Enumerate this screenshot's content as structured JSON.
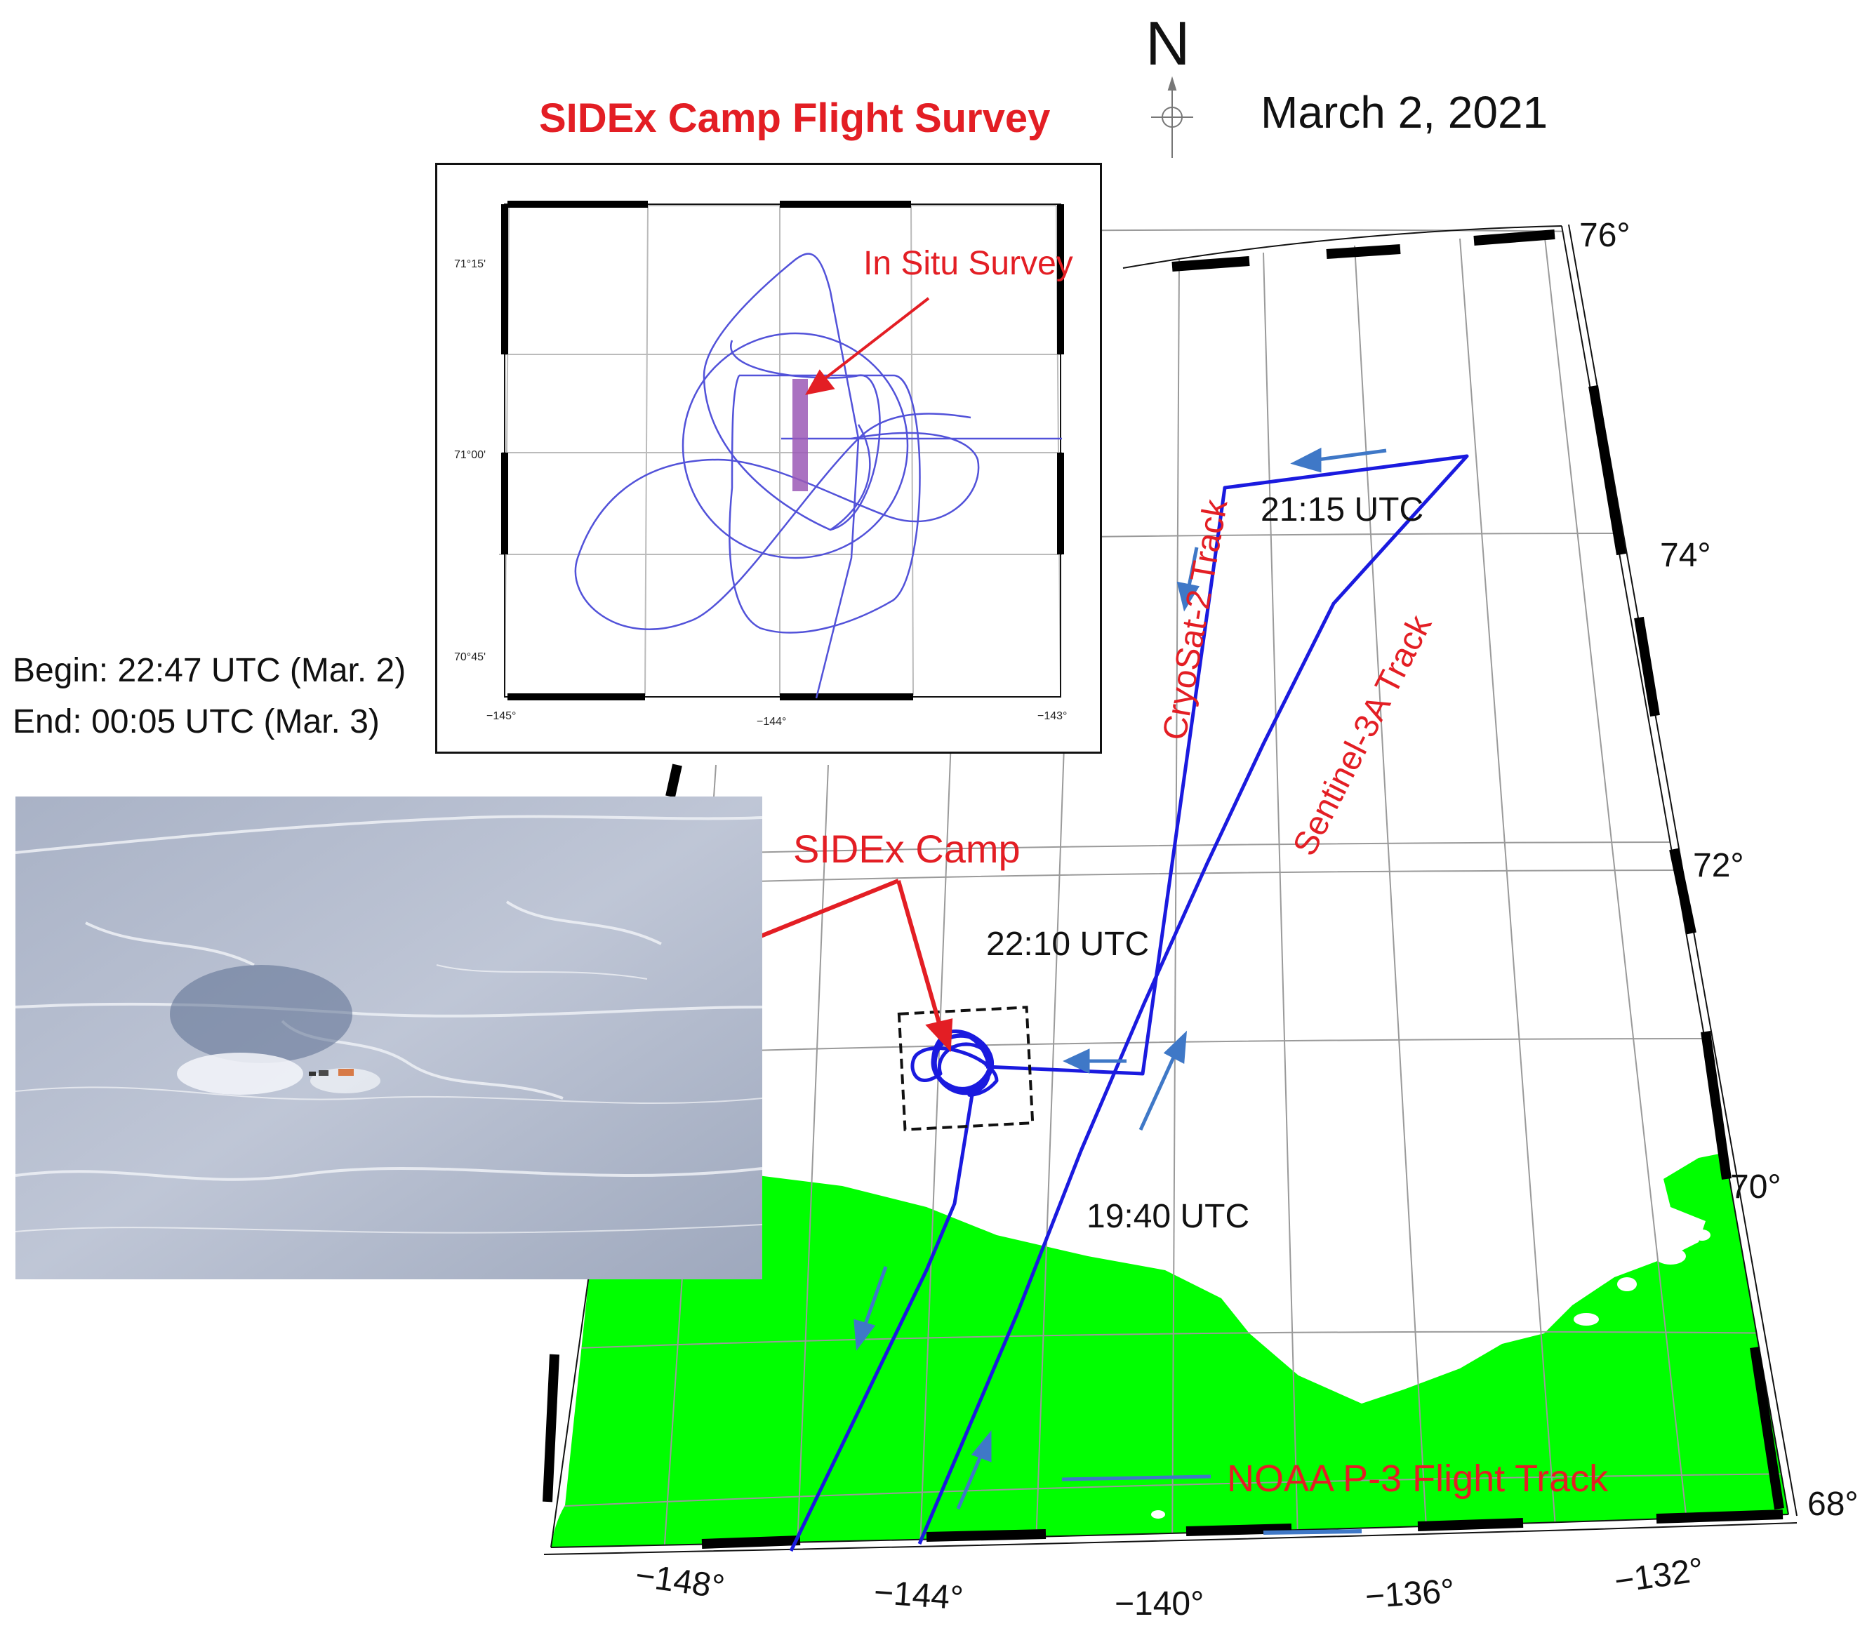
{
  "header": {
    "north_label": "N",
    "date": "March 2, 2021",
    "inset_title": "SIDEx Camp Flight Survey"
  },
  "times": {
    "begin": "Begin: 22:47 UTC (Mar. 2)",
    "end": "End: 00:05 UTC (Mar. 3)",
    "t_2115": "21:15 UTC",
    "t_2210": "22:10 UTC",
    "t_1940": "19:40 UTC"
  },
  "labels": {
    "sidex_camp": "SIDEx Camp",
    "in_situ": "In Situ Survey",
    "cryosat": "CryoSat-2 Track",
    "sentinel": "Sentinel-3A Track",
    "noaa": "NOAA P-3 Flight Track"
  },
  "main_map": {
    "lat_labels": [
      "76°",
      "74°",
      "72°",
      "70°",
      "68°"
    ],
    "lon_labels": [
      "−148°",
      "−144°",
      "−140°",
      "−136°",
      "−132°"
    ],
    "land_color": "#00ff00",
    "track_color": "#1a1adf"
  },
  "inset_map": {
    "lat_labels": [
      "71°15'",
      "71°00'",
      "70°45'"
    ],
    "lon_labels": [
      "−145°",
      "−144°",
      "−143°"
    ],
    "survey_color": "#9b59b6"
  },
  "colors": {
    "label_red": "#e31e24",
    "arrow_blue": "#3f78c7"
  }
}
